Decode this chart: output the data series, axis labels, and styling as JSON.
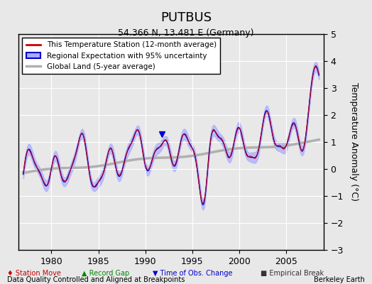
{
  "title": "PUTBUS",
  "subtitle": "54.366 N, 13.481 E (Germany)",
  "ylabel": "Temperature Anomaly (°C)",
  "ylim": [
    -3,
    5
  ],
  "xlim": [
    1976.5,
    2009.0
  ],
  "yticks": [
    -3,
    -2,
    -1,
    0,
    1,
    2,
    3,
    4,
    5
  ],
  "xticks": [
    1980,
    1985,
    1990,
    1995,
    2000,
    2005
  ],
  "background_color": "#e8e8e8",
  "plot_bg_color": "#e8e8e8",
  "grid_color": "white",
  "footer_left": "Data Quality Controlled and Aligned at Breakpoints",
  "footer_right": "Berkeley Earth",
  "legend_entries": [
    "This Temperature Station (12-month average)",
    "Regional Expectation with 95% uncertainty",
    "Global Land (5-year average)"
  ],
  "station_color": "#cc0000",
  "regional_color": "#0000cc",
  "regional_fill_color": "#aaaaff",
  "global_color": "#b0b0b0",
  "obs_change_marker_color": "#0000cc",
  "station_move_color": "#cc0000",
  "record_gap_color": "#008800",
  "empirical_break_color": "#333333"
}
